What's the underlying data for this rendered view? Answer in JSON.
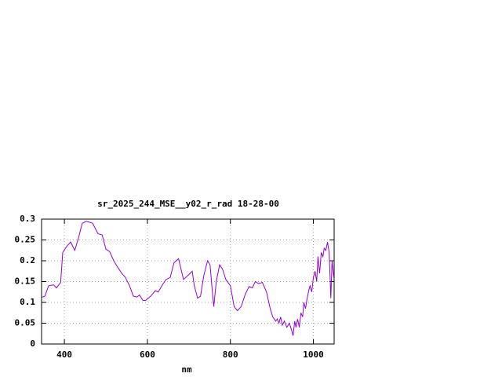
{
  "chart_data": {
    "type": "line",
    "title": "sr_2025_244_MSE__y02_r_rad 18-28-00",
    "x_label": "nm",
    "xlim": [
      345,
      1050
    ],
    "ylim": [
      0,
      0.3
    ],
    "xticks": [
      400,
      600,
      800,
      1000
    ],
    "yticks": [
      0,
      0.05,
      0.1,
      0.15,
      0.2,
      0.25,
      0.3
    ],
    "grid": true,
    "series": [
      {
        "color": "#9400d3",
        "x": [
          345,
          353,
          362,
          374,
          381,
          391,
          396,
          406,
          415,
          425,
          434,
          443,
          453,
          468,
          481,
          491,
          500,
          509,
          519,
          528,
          538,
          547,
          557,
          566,
          575,
          581,
          589,
          596,
          608,
          619,
          626,
          638,
          645,
          655,
          664,
          675,
          687,
          698,
          708,
          713,
          721,
          728,
          736,
          745,
          751,
          757,
          760,
          766,
          774,
          781,
          789,
          800,
          809,
          817,
          826,
          836,
          845,
          853,
          860,
          868,
          877,
          887,
          896,
          902,
          906,
          909,
          913,
          917,
          921,
          925,
          930,
          936,
          942,
          947,
          951,
          955,
          958,
          962,
          966,
          970,
          974,
          977,
          981,
          985,
          989,
          992,
          996,
          1000,
          1004,
          1008,
          1011,
          1015,
          1019,
          1023,
          1026,
          1030,
          1034,
          1038,
          1042,
          1045,
          1049
        ],
        "values": [
          0.112,
          0.115,
          0.14,
          0.142,
          0.135,
          0.148,
          0.22,
          0.235,
          0.245,
          0.225,
          0.255,
          0.29,
          0.295,
          0.29,
          0.265,
          0.262,
          0.228,
          0.222,
          0.2,
          0.185,
          0.17,
          0.16,
          0.14,
          0.115,
          0.113,
          0.118,
          0.105,
          0.105,
          0.115,
          0.128,
          0.125,
          0.145,
          0.155,
          0.16,
          0.195,
          0.205,
          0.155,
          0.165,
          0.175,
          0.14,
          0.11,
          0.115,
          0.165,
          0.2,
          0.19,
          0.12,
          0.09,
          0.15,
          0.19,
          0.18,
          0.155,
          0.14,
          0.09,
          0.08,
          0.09,
          0.12,
          0.138,
          0.135,
          0.15,
          0.145,
          0.148,
          0.125,
          0.085,
          0.065,
          0.06,
          0.055,
          0.06,
          0.05,
          0.065,
          0.045,
          0.055,
          0.04,
          0.05,
          0.035,
          0.02,
          0.055,
          0.04,
          0.06,
          0.04,
          0.075,
          0.065,
          0.1,
          0.085,
          0.11,
          0.13,
          0.14,
          0.125,
          0.16,
          0.175,
          0.15,
          0.21,
          0.17,
          0.22,
          0.21,
          0.23,
          0.225,
          0.245,
          0.22,
          0.11,
          0.2,
          0.16
        ]
      }
    ]
  }
}
